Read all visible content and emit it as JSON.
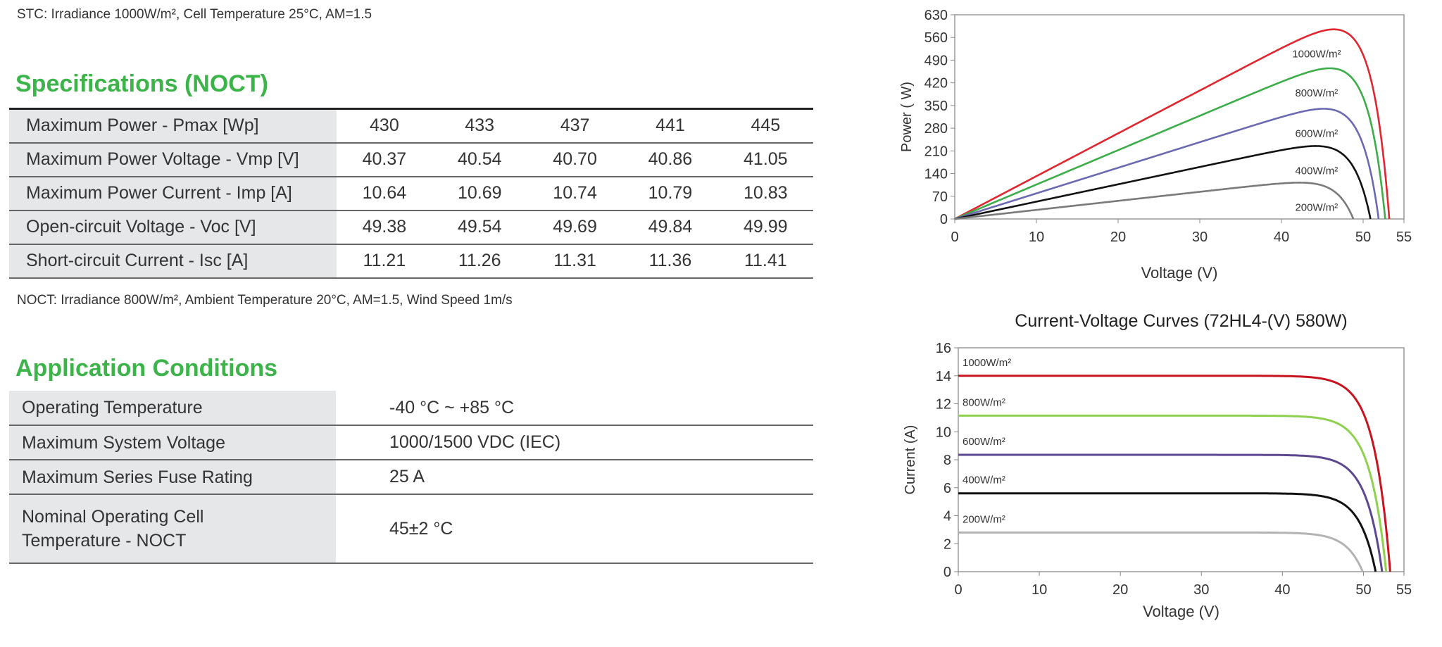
{
  "stc_note": "STC: Irradiance 1000W/m², Cell Temperature 25°C, AM=1.5",
  "noct_section": {
    "title": "Specifications (NOCT)",
    "rows": [
      {
        "label": "Maximum Power - Pmax [Wp]",
        "values": [
          "430",
          "433",
          "437",
          "441",
          "445"
        ]
      },
      {
        "label": "Maximum Power Voltage - Vmp [V]",
        "values": [
          "40.37",
          "40.54",
          "40.70",
          "40.86",
          "41.05"
        ]
      },
      {
        "label": "Maximum Power Current - Imp [A]",
        "values": [
          "10.64",
          "10.69",
          "10.74",
          "10.79",
          "10.83"
        ]
      },
      {
        "label": "Open-circuit Voltage - Voc [V]",
        "values": [
          "49.38",
          "49.54",
          "49.69",
          "49.84",
          "49.99"
        ]
      },
      {
        "label": "Short-circuit Current - Isc [A]",
        "values": [
          "11.21",
          "11.26",
          "11.31",
          "11.36",
          "11.41"
        ]
      }
    ],
    "note": "NOCT: Irradiance 800W/m², Ambient Temperature 20°C, AM=1.5, Wind Speed 1m/s"
  },
  "application_conditions": {
    "title": "Application Conditions",
    "rows": [
      {
        "label": "Operating Temperature",
        "value": "-40 °C ~ +85 °C"
      },
      {
        "label": "Maximum System Voltage",
        "value": "1000/1500 VDC (IEC)"
      },
      {
        "label": "Maximum Series Fuse Rating",
        "value": "25 A"
      },
      {
        "label": "Nominal Operating Cell Temperature - NOCT",
        "value": "45±2 °C"
      }
    ]
  },
  "chart_data": [
    {
      "type": "line",
      "title": "",
      "xlabel": "Voltage (V)",
      "ylabel": "Power ( W)",
      "xlim": [
        0,
        55
      ],
      "ylim": [
        0,
        630
      ],
      "xticks": [
        "0",
        "10",
        "20",
        "30",
        "40",
        "50",
        "55"
      ],
      "yticks": [
        "0",
        "70",
        "140",
        "210",
        "280",
        "350",
        "420",
        "490",
        "560",
        "630"
      ],
      "grid": false,
      "series": [
        {
          "name": "1000W/m²",
          "color": "#e0262e",
          "pmax": 585,
          "vmp": 44,
          "voc": 53.2
        },
        {
          "name": "800W/m²",
          "color": "#3cad48",
          "pmax": 465,
          "vmp": 44,
          "voc": 52.7
        },
        {
          "name": "600W/m²",
          "color": "#6c69b3",
          "pmax": 340,
          "vmp": 43.5,
          "voc": 51.9
        },
        {
          "name": "400W/m²",
          "color": "#111111",
          "pmax": 225,
          "vmp": 43,
          "voc": 50.9
        },
        {
          "name": "200W/m²",
          "color": "#7a7a7a",
          "pmax": 112,
          "vmp": 42,
          "voc": 48.8
        }
      ]
    },
    {
      "type": "line",
      "title": "Current-Voltage Curves (72HL4-(V) 580W)",
      "xlabel": "Voltage (V)",
      "ylabel": "Current (A)",
      "xlim": [
        0,
        55
      ],
      "ylim": [
        0,
        16
      ],
      "xticks": [
        "0",
        "10",
        "20",
        "30",
        "40",
        "50",
        "55"
      ],
      "yticks": [
        "0",
        "2",
        "4",
        "6",
        "8",
        "10",
        "12",
        "14",
        "16"
      ],
      "grid": false,
      "series": [
        {
          "name": "1000W/m²",
          "color": "#c8141e",
          "isc": 14.0,
          "voc": 53.3
        },
        {
          "name": "800W/m²",
          "color": "#8fd14f",
          "isc": 11.15,
          "voc": 52.8
        },
        {
          "name": "600W/m²",
          "color": "#5d4791",
          "isc": 8.35,
          "voc": 52.3
        },
        {
          "name": "400W/m²",
          "color": "#111111",
          "isc": 5.6,
          "voc": 51.5
        },
        {
          "name": "200W/m²",
          "color": "#b3b3b3",
          "isc": 2.8,
          "voc": 49.9
        }
      ]
    }
  ]
}
